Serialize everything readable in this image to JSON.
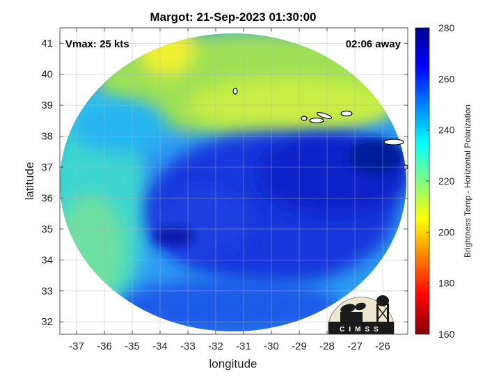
{
  "chart_data": {
    "type": "heatmap",
    "title": "Margot: 21-Sep-2023 01:30:00",
    "xlabel": "longitude",
    "ylabel": "latitude",
    "xlim": [
      -37.6,
      -25.1
    ],
    "ylim": [
      31.6,
      41.5
    ],
    "x_ticks": [
      -37,
      -36,
      -35,
      -34,
      -33,
      -32,
      -31,
      -30,
      -29,
      -28,
      -27,
      -26
    ],
    "y_ticks": [
      32,
      33,
      34,
      35,
      36,
      37,
      38,
      39,
      40,
      41
    ],
    "grid": true,
    "annotations": {
      "vmax": "Vmax: 25 kts",
      "time_offset": "02:06 away"
    },
    "colorbar": {
      "label": "Brightness Temp - Horizontal Polarization",
      "range": [
        160,
        280
      ],
      "ticks": [
        160,
        180,
        200,
        220,
        240,
        260,
        280
      ],
      "colormap": "jet_reversed"
    },
    "field_description_regions": [
      {
        "region": "north",
        "lat_range": [
          38.2,
          41.5
        ],
        "lon_range": [
          -34,
          -27
        ],
        "value_approx": 210
      },
      {
        "region": "west",
        "lat_range": [
          32,
          39
        ],
        "lon_range": [
          -37.5,
          -35
        ],
        "value_approx": 238
      },
      {
        "region": "southeast",
        "lat_range": [
          32,
          38
        ],
        "lon_range": [
          -34,
          -25.2
        ],
        "value_approx": 262
      }
    ]
  },
  "logo": {
    "text": "CIMSS"
  }
}
